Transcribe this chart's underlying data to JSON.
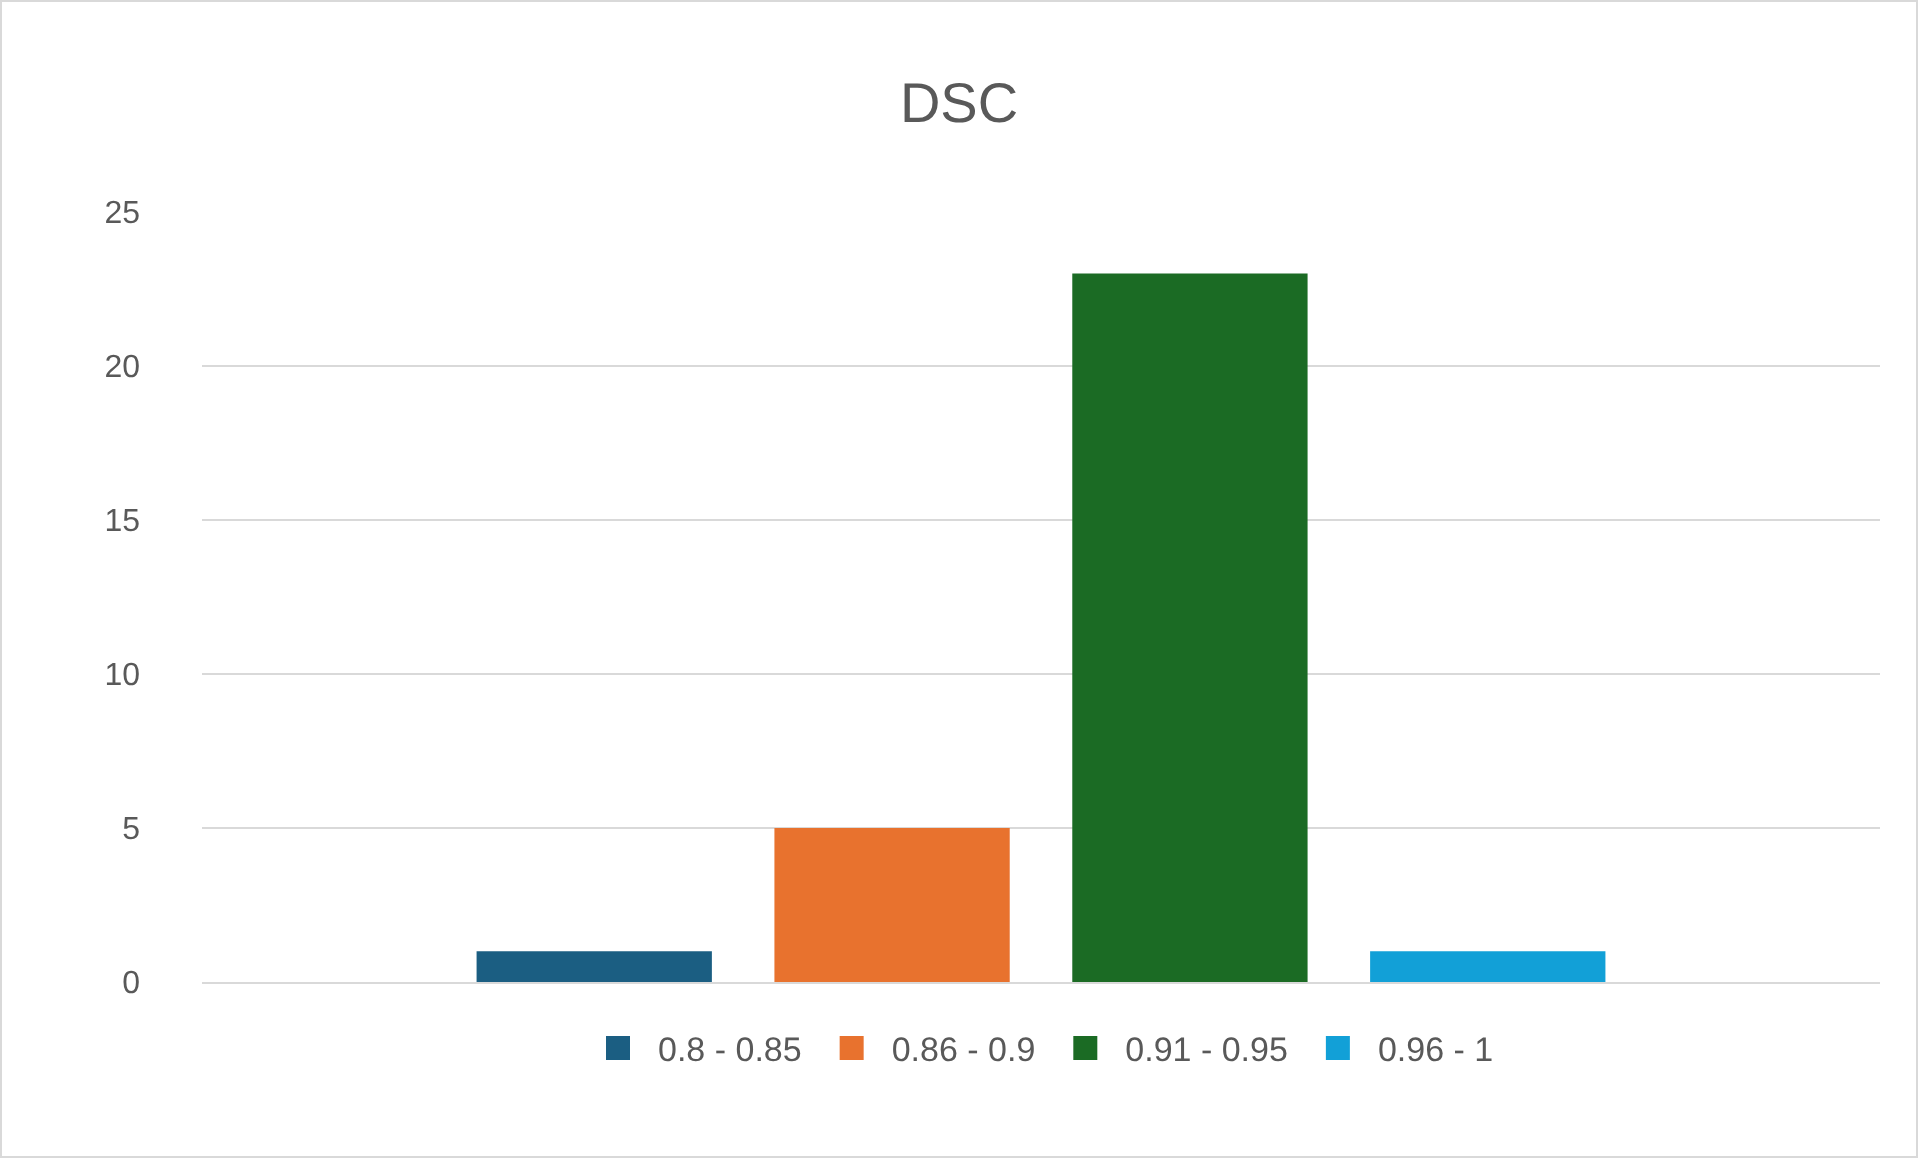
{
  "chart_data": {
    "type": "bar",
    "title": "DSC",
    "categories": [
      null
    ],
    "series": [
      {
        "name": "0.8 - 0.85",
        "color": "#1b5e82",
        "values": [
          1
        ]
      },
      {
        "name": "0.86 - 0.9",
        "color": "#e8722e",
        "values": [
          5
        ]
      },
      {
        "name": "0.91 - 0.95",
        "color": "#1b6b24",
        "values": [
          23
        ]
      },
      {
        "name": "0.96 - 1",
        "color": "#12a0d7",
        "values": [
          1
        ]
      }
    ],
    "ylim": [
      0,
      25
    ],
    "yticks": [
      0,
      5,
      10,
      15,
      20,
      25
    ],
    "grid": "y",
    "legend": "bottom"
  }
}
